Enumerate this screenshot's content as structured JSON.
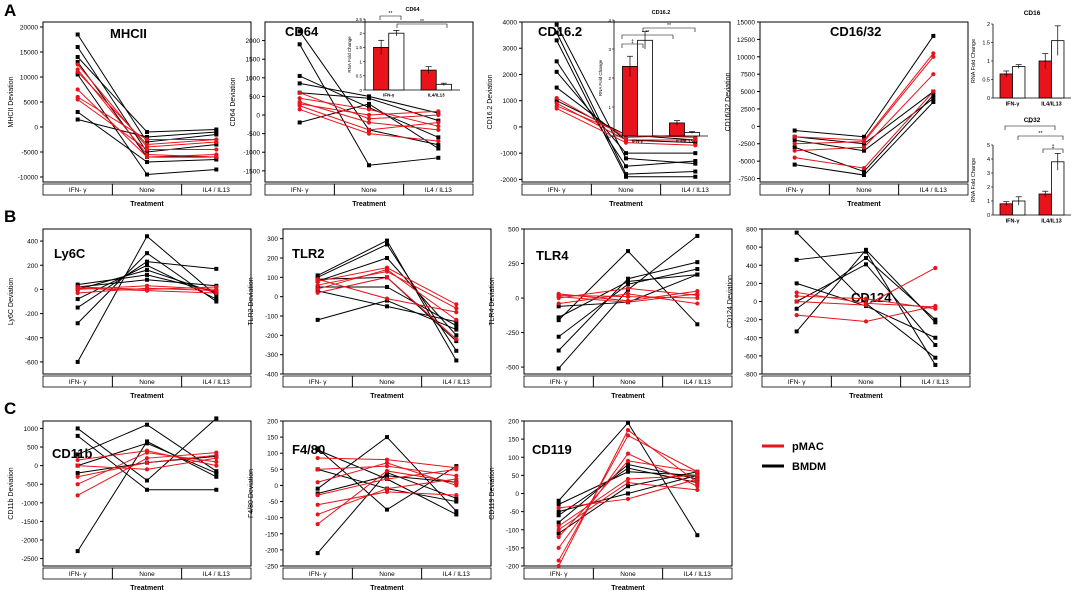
{
  "figure": {
    "panel_letters": [
      "A",
      "B",
      "C"
    ],
    "xlabel": "Treatment",
    "categories": [
      "IFN- γ",
      "None",
      "IL4 / IL13"
    ],
    "legend": [
      {
        "label": "pMAC",
        "color": "#e8131b"
      },
      {
        "label": "BMDM",
        "color": "#000000"
      }
    ],
    "colors": {
      "pMAC": "#e8131b",
      "BMDM": "#000000",
      "bar_fill_a": "#e8131b",
      "bar_fill_b": "#ffffff"
    }
  },
  "chart_data": [
    {
      "type": "line",
      "panel": "A",
      "title": "MHCII",
      "ylabel": "MHCII Deviation",
      "categories": [
        "IFN- γ",
        "None",
        "IL4 / IL13"
      ],
      "ylim": [
        -11000,
        21000
      ],
      "yticks": [
        -10000,
        -5000,
        0,
        5000,
        10000,
        15000,
        20000
      ],
      "series_bmdm": [
        [
          18500,
          -3000,
          -1500
        ],
        [
          16000,
          -5000,
          -3500
        ],
        [
          14000,
          -1000,
          -500
        ],
        [
          13000,
          -6000,
          -6000
        ],
        [
          10500,
          -9500,
          -8500
        ],
        [
          3000,
          -7000,
          -6500
        ],
        [
          1500,
          -2000,
          -1000
        ]
      ],
      "series_pmac": [
        [
          12500,
          -4000,
          -3000
        ],
        [
          11500,
          -5500,
          -6000
        ],
        [
          11000,
          -3500,
          -2500
        ],
        [
          7500,
          -6000,
          -5500
        ],
        [
          6000,
          -2500,
          -2500
        ],
        [
          5500,
          -4500,
          -4500
        ]
      ]
    },
    {
      "type": "line",
      "panel": "A",
      "title": "CD64",
      "ylabel": "CD64 Deviation",
      "categories": [
        "IFN- γ",
        "None",
        "IL4 / IL13"
      ],
      "ylim": [
        -1800,
        2500
      ],
      "yticks": [
        -1500,
        -1000,
        -500,
        0,
        500,
        1000,
        1500,
        2000
      ],
      "series_bmdm": [
        [
          2250,
          -400,
          -800
        ],
        [
          1900,
          -1350,
          -1150
        ],
        [
          1050,
          200,
          -600
        ],
        [
          850,
          500,
          50
        ],
        [
          600,
          450,
          -150
        ],
        [
          -200,
          300,
          -900
        ]
      ],
      "series_pmac": [
        [
          600,
          -100,
          0
        ],
        [
          450,
          150,
          -300
        ],
        [
          350,
          -200,
          -400
        ],
        [
          300,
          0,
          100
        ],
        [
          250,
          -400,
          -200
        ],
        [
          150,
          -500,
          -700
        ]
      ],
      "inset": {
        "title": "CD64",
        "ylabel": "RNA Fold Change",
        "ylim": [
          0,
          2.5
        ],
        "yticks": [
          0,
          0.5,
          1.0,
          1.5,
          2.0,
          2.5
        ],
        "groups": [
          "IFN-γ",
          "IL4/IL13"
        ],
        "values_pmac": [
          1.5,
          0.7
        ],
        "values_bmdm": [
          2.0,
          0.2
        ],
        "errors_pmac": [
          0.25,
          0.12
        ],
        "errors_bmdm": [
          0.1,
          0.04
        ],
        "significance": [
          {
            "pair": "IFN-γ pMAC / IL4/IL13 pMAC",
            "label": "**"
          },
          {
            "pair": "IFN-γ BMDM / IL4/IL13 BMDM",
            "label": "**"
          }
        ]
      }
    },
    {
      "type": "line",
      "panel": "A",
      "title": "CD16.2",
      "ylabel": "CD16.2 Deviation",
      "categories": [
        "IFN- γ",
        "None",
        "IL4 / IL13"
      ],
      "ylim": [
        -2100,
        4000
      ],
      "yticks": [
        -2000,
        -1000,
        0,
        1000,
        2000,
        3000,
        4000
      ],
      "series_bmdm": [
        [
          3900,
          -1200,
          -1400
        ],
        [
          3600,
          -1800,
          -1700
        ],
        [
          3300,
          -1900,
          -1900
        ],
        [
          2500,
          -1500,
          -1300
        ],
        [
          2100,
          -1000,
          -1000
        ],
        [
          1500,
          -500,
          -600
        ],
        [
          1000,
          -300,
          -500
        ]
      ],
      "series_pmac": [
        [
          1100,
          -400,
          -300
        ],
        [
          900,
          -500,
          -500
        ],
        [
          800,
          -300,
          -400
        ],
        [
          700,
          -600,
          -700
        ]
      ],
      "inset": {
        "title": "CD16.2",
        "ylabel": "RNA Fold Change",
        "ylim": [
          0,
          4
        ],
        "yticks": [
          0,
          1,
          2,
          3,
          4
        ],
        "groups": [
          "IFN-γ",
          "IL4/IL13"
        ],
        "values_pmac": [
          2.4,
          0.45
        ],
        "values_bmdm": [
          3.3,
          0.12
        ],
        "errors_pmac": [
          0.35,
          0.08
        ],
        "errors_bmdm": [
          0.3,
          0.03
        ],
        "significance": [
          {
            "pair": "IFN-γ pMAC / IFN-γ BMDM",
            "label": "‡"
          },
          {
            "pair": "IFN-γ pMAC / IL4/IL13 pMAC",
            "label": "**"
          },
          {
            "pair": "IFN-γ BMDM / IL4/IL13 BMDM",
            "label": "**"
          }
        ]
      }
    },
    {
      "type": "line",
      "panel": "A",
      "title": "CD16/32",
      "ylabel": "CD16/32 Deviation",
      "categories": [
        "IFN- γ",
        "None",
        "IL4 / IL13"
      ],
      "ylim": [
        -8000,
        15000
      ],
      "yticks": [
        -7500,
        -5000,
        -2500,
        0,
        2500,
        5000,
        7500,
        10000,
        12500,
        15000
      ],
      "series_bmdm": [
        [
          -600,
          -1500,
          13000
        ],
        [
          -1500,
          -2500,
          5000
        ],
        [
          -2000,
          -3500,
          4000
        ],
        [
          -5500,
          -7000,
          3500
        ],
        [
          -3000,
          -6500,
          4500
        ]
      ],
      "series_pmac": [
        [
          -1500,
          -2000,
          10500
        ],
        [
          -2500,
          -2200,
          10000
        ],
        [
          -3500,
          -3000,
          7500
        ],
        [
          -4500,
          -6000,
          5000
        ]
      ]
    },
    {
      "type": "bar",
      "panel": "A",
      "title": "CD16",
      "ylabel": "RNA Fold Change",
      "groups": [
        "IFN-γ",
        "IL4/IL13"
      ],
      "ylim": [
        0,
        2.0
      ],
      "yticks": [
        0.0,
        0.5,
        1.0,
        1.5,
        2.0
      ],
      "values_pmac": [
        0.65,
        1.0
      ],
      "values_bmdm": [
        0.85,
        1.55
      ],
      "errors_pmac": [
        0.08,
        0.2
      ],
      "errors_bmdm": [
        0.05,
        0.4
      ]
    },
    {
      "type": "bar",
      "panel": "A",
      "title": "CD32",
      "ylabel": "RNA Fold Change",
      "groups": [
        "IFN-γ",
        "IL4/IL13"
      ],
      "ylim": [
        0,
        5
      ],
      "yticks": [
        0,
        1,
        2,
        3,
        4,
        5
      ],
      "values_pmac": [
        0.8,
        1.5
      ],
      "values_bmdm": [
        1.0,
        3.8
      ],
      "errors_pmac": [
        0.15,
        0.2
      ],
      "errors_bmdm": [
        0.3,
        0.6
      ],
      "significance": [
        {
          "label": "**"
        },
        {
          "label": "**"
        },
        {
          "label": "‡"
        }
      ]
    },
    {
      "type": "line",
      "panel": "B",
      "title": "Ly6C",
      "ylabel": "Ly6C Deviation",
      "categories": [
        "IFN- γ",
        "None",
        "IL4 / IL13"
      ],
      "ylim": [
        -700,
        500
      ],
      "yticks": [
        -600,
        -400,
        -200,
        0,
        200,
        400
      ],
      "series_bmdm": [
        [
          -600,
          440,
          -50
        ],
        [
          -280,
          300,
          -100
        ],
        [
          -150,
          230,
          170
        ],
        [
          -80,
          200,
          -80
        ],
        [
          0,
          160,
          -30
        ],
        [
          40,
          120,
          -20
        ],
        [
          20,
          80,
          30
        ]
      ],
      "series_pmac": [
        [
          0,
          30,
          0
        ],
        [
          20,
          0,
          20
        ],
        [
          -30,
          10,
          -10
        ],
        [
          10,
          -10,
          -30
        ]
      ]
    },
    {
      "type": "line",
      "panel": "B",
      "title": "TLR2",
      "ylabel": "TLR2 Deviation",
      "categories": [
        "IFN- γ",
        "None",
        "IL4 / IL13"
      ],
      "ylim": [
        -400,
        350
      ],
      "yticks": [
        -400,
        -300,
        -200,
        -100,
        0,
        100,
        200,
        300
      ],
      "series_bmdm": [
        [
          110,
          290,
          -330
        ],
        [
          100,
          270,
          -280
        ],
        [
          80,
          200,
          -200
        ],
        [
          50,
          50,
          -150
        ],
        [
          30,
          -50,
          -130
        ],
        [
          -120,
          -20,
          -170
        ],
        [
          90,
          100,
          -230
        ]
      ],
      "series_pmac": [
        [
          80,
          150,
          -40
        ],
        [
          60,
          130,
          -60
        ],
        [
          40,
          140,
          -120
        ],
        [
          20,
          100,
          -220
        ],
        [
          90,
          -10,
          -80
        ]
      ]
    },
    {
      "type": "line",
      "panel": "B",
      "title": "TLR4",
      "ylabel": "TLR4 Deviation",
      "categories": [
        "IFN- γ",
        "None",
        "IL4 / IL13"
      ],
      "ylim": [
        -550,
        500
      ],
      "yticks": [
        -500,
        -250,
        0,
        250,
        500
      ],
      "series_bmdm": [
        [
          -510,
          60,
          450
        ],
        [
          -380,
          140,
          260
        ],
        [
          -280,
          100,
          210
        ],
        [
          -160,
          340,
          -190
        ],
        [
          -140,
          120,
          170
        ],
        [
          -60,
          -30,
          170
        ]
      ],
      "series_pmac": [
        [
          30,
          -20,
          50
        ],
        [
          20,
          10,
          0
        ],
        [
          0,
          70,
          20
        ],
        [
          -40,
          30,
          -40
        ],
        [
          10,
          -30,
          30
        ]
      ]
    },
    {
      "type": "line",
      "panel": "B",
      "title": "CD124",
      "ylabel": "CD124 Deviation",
      "categories": [
        "IFN- γ",
        "None",
        "IL4 / IL13"
      ],
      "ylim": [
        -800,
        800
      ],
      "yticks": [
        -800,
        -600,
        -400,
        -200,
        0,
        200,
        400,
        600,
        800
      ],
      "series_bmdm": [
        [
          760,
          -20,
          -620
        ],
        [
          460,
          550,
          -700
        ],
        [
          200,
          -50,
          -400
        ],
        [
          -80,
          480,
          -200
        ],
        [
          -330,
          570,
          -230
        ],
        [
          0,
          410,
          -480
        ]
      ],
      "series_pmac": [
        [
          100,
          -20,
          -60
        ],
        [
          60,
          30,
          -80
        ],
        [
          0,
          -40,
          370
        ],
        [
          -150,
          -220,
          -50
        ]
      ]
    },
    {
      "type": "line",
      "panel": "C",
      "title": "CD11b",
      "ylabel": "CD11b Deviation",
      "categories": [
        "IFN- γ",
        "None",
        "IL4 / IL13"
      ],
      "ylim": [
        -2700,
        1200
      ],
      "yticks": [
        -2500,
        -2000,
        -1500,
        -1000,
        -500,
        0,
        500,
        1000
      ],
      "series_bmdm": [
        [
          1000,
          -400,
          1270
        ],
        [
          800,
          -650,
          -650
        ],
        [
          300,
          1100,
          -150
        ],
        [
          -2300,
          650,
          -300
        ],
        [
          0,
          600,
          -200
        ],
        [
          -200,
          80,
          250
        ]
      ],
      "series_pmac": [
        [
          -800,
          200,
          350
        ],
        [
          -500,
          350,
          100
        ],
        [
          -300,
          80,
          280
        ],
        [
          0,
          -100,
          200
        ],
        [
          150,
          400,
          0
        ]
      ]
    },
    {
      "type": "line",
      "panel": "C",
      "title": "F4/80",
      "ylabel": "F4/80 Deviation",
      "categories": [
        "IFN- γ",
        "None",
        "IL4 / IL13"
      ],
      "ylim": [
        -250,
        200
      ],
      "yticks": [
        -250,
        -200,
        -150,
        -100,
        -50,
        0,
        50,
        100,
        150,
        200
      ],
      "series_bmdm": [
        [
          115,
          -75,
          60
        ],
        [
          110,
          20,
          -90
        ],
        [
          -10,
          150,
          -80
        ],
        [
          -210,
          40,
          -40
        ],
        [
          -25,
          30,
          10
        ],
        [
          50,
          -10,
          -50
        ]
      ],
      "series_pmac": [
        [
          85,
          80,
          55
        ],
        [
          50,
          60,
          30
        ],
        [
          10,
          70,
          0
        ],
        [
          -30,
          20,
          50
        ],
        [
          -60,
          -20,
          -30
        ],
        [
          -90,
          -10,
          20
        ],
        [
          -120,
          45,
          10
        ]
      ]
    },
    {
      "type": "line",
      "panel": "C",
      "title": "CD119",
      "ylabel": "CD119 Deviation",
      "categories": [
        "IFN- γ",
        "None",
        "IL4 / IL13"
      ],
      "ylim": [
        -200,
        200
      ],
      "yticks": [
        -200,
        -150,
        -100,
        -50,
        0,
        50,
        100,
        150,
        200
      ],
      "series_bmdm": [
        [
          -20,
          195,
          -115
        ],
        [
          -30,
          60,
          50
        ],
        [
          -80,
          80,
          40
        ],
        [
          -110,
          20,
          60
        ],
        [
          -50,
          0,
          50
        ],
        [
          -60,
          70,
          30
        ]
      ],
      "series_pmac": [
        [
          -200,
          175,
          30
        ],
        [
          -185,
          160,
          60
        ],
        [
          -150,
          110,
          20
        ],
        [
          -120,
          90,
          60
        ],
        [
          -90,
          40,
          50
        ],
        [
          -40,
          -15,
          40
        ],
        [
          -100,
          30,
          10
        ]
      ]
    }
  ]
}
